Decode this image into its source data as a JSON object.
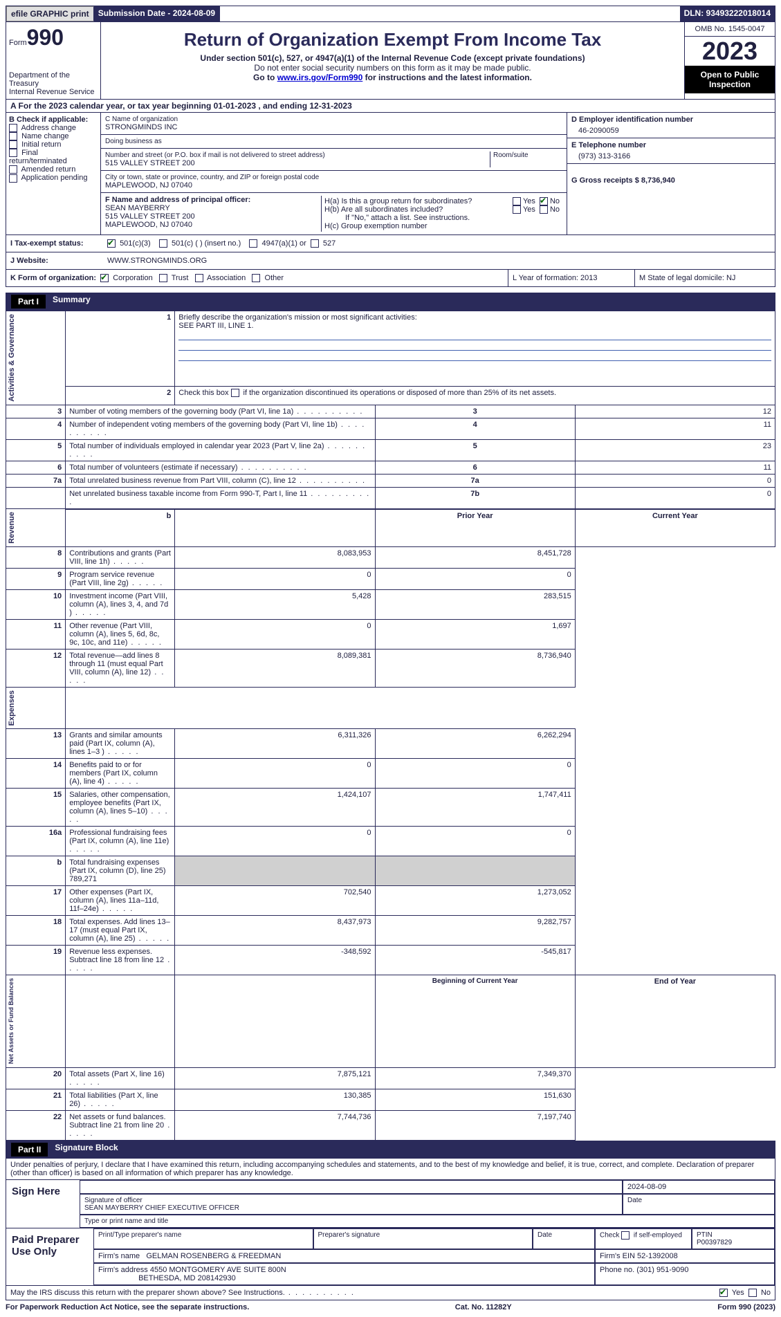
{
  "header": {
    "efile": "efile GRAPHIC print",
    "submission_label": "Submission Date - 2024-08-09",
    "dln": "DLN: 93493222018014"
  },
  "title": {
    "form_prefix": "Form",
    "form_no": "990",
    "dept": "Department of the Treasury",
    "irs": "Internal Revenue Service",
    "main": "Return of Organization Exempt From Income Tax",
    "sub1": "Under section 501(c), 527, or 4947(a)(1) of the Internal Revenue Code (except private foundations)",
    "sub2": "Do not enter social security numbers on this form as it may be made public.",
    "sub3_pre": "Go to ",
    "sub3_link": "www.irs.gov/Form990",
    "sub3_post": " for instructions and the latest information.",
    "omb": "OMB No. 1545-0047",
    "year": "2023",
    "inspection": "Open to Public Inspection"
  },
  "sectionA": "A For the 2023 calendar year, or tax year beginning 01-01-2023   , and ending 12-31-2023",
  "boxB": {
    "heading": "B Check if applicable:",
    "items": [
      "Address change",
      "Name change",
      "Initial return",
      "Final return/terminated",
      "Amended return",
      "Application pending"
    ]
  },
  "boxC": {
    "name_label": "C Name of organization",
    "name": "STRONGMINDS INC",
    "dba_label": "Doing business as",
    "street_label": "Number and street (or P.O. box if mail is not delivered to street address)",
    "room_label": "Room/suite",
    "street": "515 VALLEY STREET 200",
    "city_label": "City or town, state or province, country, and ZIP or foreign postal code",
    "city": "MAPLEWOOD, NJ  07040"
  },
  "boxD": {
    "label": "D Employer identification number",
    "val": "46-2090059"
  },
  "boxE": {
    "label": "E Telephone number",
    "val": "(973) 313-3166"
  },
  "boxG": {
    "label": "G Gross receipts $ 8,736,940"
  },
  "boxF": {
    "label": "F  Name and address of principal officer:",
    "l1": "SEAN MAYBERRY",
    "l2": "515 VALLEY STREET 200",
    "l3": "MAPLEWOOD, NJ  07040"
  },
  "boxH": {
    "a": "H(a)  Is this a group return for subordinates?",
    "b": "H(b)  Are all subordinates included?",
    "note": "If \"No,\" attach a list. See instructions.",
    "c": "H(c)  Group exemption number"
  },
  "boxI": {
    "label": "I   Tax-exempt status:",
    "o1": "501(c)(3)",
    "o2": "501(c) (  ) (insert no.)",
    "o3": "4947(a)(1) or",
    "o4": "527"
  },
  "boxJ": {
    "label": "J   Website:",
    "val": "WWW.STRONGMINDS.ORG"
  },
  "boxK": {
    "label": "K Form of organization:",
    "o1": "Corporation",
    "o2": "Trust",
    "o3": "Association",
    "o4": "Other"
  },
  "boxL": "L Year of formation: 2013",
  "boxM": "M State of legal domicile: NJ",
  "part1": {
    "label": "Part I",
    "title": "Summary"
  },
  "summary": {
    "s1": {
      "cat": "Activities & Governance",
      "l1": "Briefly describe the organization's mission or most significant activities:",
      "l1v": "SEE PART III, LINE 1.",
      "l2": "Check this box        if the organization discontinued its operations or disposed of more than 25% of its net assets.",
      "rows": [
        {
          "n": "3",
          "t": "Number of voting members of the governing body (Part VI, line 1a)",
          "v": "12"
        },
        {
          "n": "4",
          "t": "Number of independent voting members of the governing body (Part VI, line 1b)",
          "v": "11"
        },
        {
          "n": "5",
          "t": "Total number of individuals employed in calendar year 2023 (Part V, line 2a)",
          "v": "23"
        },
        {
          "n": "6",
          "t": "Total number of volunteers (estimate if necessary)",
          "v": "11"
        },
        {
          "n": "7a",
          "t": "Total unrelated business revenue from Part VIII, column (C), line 12",
          "v": "0"
        },
        {
          "n": "7b",
          "t": "Net unrelated business taxable income from Form 990-T, Part I, line 11",
          "v": "0",
          "hide_num": true
        }
      ]
    },
    "s2": {
      "cat": "Revenue",
      "h1": "Prior Year",
      "h2": "Current Year",
      "rows": [
        {
          "n": "8",
          "t": "Contributions and grants (Part VIII, line 1h)",
          "p": "8,083,953",
          "c": "8,451,728"
        },
        {
          "n": "9",
          "t": "Program service revenue (Part VIII, line 2g)",
          "p": "0",
          "c": "0"
        },
        {
          "n": "10",
          "t": "Investment income (Part VIII, column (A), lines 3, 4, and 7d )",
          "p": "5,428",
          "c": "283,515"
        },
        {
          "n": "11",
          "t": "Other revenue (Part VIII, column (A), lines 5, 6d, 8c, 9c, 10c, and 11e)",
          "p": "0",
          "c": "1,697"
        },
        {
          "n": "12",
          "t": "Total revenue—add lines 8 through 11 (must equal Part VIII, column (A), line 12)",
          "p": "8,089,381",
          "c": "8,736,940"
        }
      ]
    },
    "s3": {
      "cat": "Expenses",
      "rows": [
        {
          "n": "13",
          "t": "Grants and similar amounts paid (Part IX, column (A), lines 1–3 )",
          "p": "6,311,326",
          "c": "6,262,294"
        },
        {
          "n": "14",
          "t": "Benefits paid to or for members (Part IX, column (A), line 4)",
          "p": "0",
          "c": "0"
        },
        {
          "n": "15",
          "t": "Salaries, other compensation, employee benefits (Part IX, column (A), lines 5–10)",
          "p": "1,424,107",
          "c": "1,747,411"
        },
        {
          "n": "16a",
          "t": "Professional fundraising fees (Part IX, column (A), line 11e)",
          "p": "0",
          "c": "0"
        },
        {
          "n": "b",
          "t": "Total fundraising expenses (Part IX, column (D), line 25) 789,271",
          "shade": true
        },
        {
          "n": "17",
          "t": "Other expenses (Part IX, column (A), lines 11a–11d, 11f–24e)",
          "p": "702,540",
          "c": "1,273,052"
        },
        {
          "n": "18",
          "t": "Total expenses. Add lines 13–17 (must equal Part IX, column (A), line 25)",
          "p": "8,437,973",
          "c": "9,282,757"
        },
        {
          "n": "19",
          "t": "Revenue less expenses. Subtract line 18 from line 12",
          "p": "-348,592",
          "c": "-545,817"
        }
      ]
    },
    "s4": {
      "cat": "Net Assets or Fund Balances",
      "h1": "Beginning of Current Year",
      "h2": "End of Year",
      "rows": [
        {
          "n": "20",
          "t": "Total assets (Part X, line 16)",
          "p": "7,875,121",
          "c": "7,349,370"
        },
        {
          "n": "21",
          "t": "Total liabilities (Part X, line 26)",
          "p": "130,385",
          "c": "151,630"
        },
        {
          "n": "22",
          "t": "Net assets or fund balances. Subtract line 21 from line 20",
          "p": "7,744,736",
          "c": "7,197,740"
        }
      ]
    }
  },
  "part2": {
    "label": "Part II",
    "title": "Signature Block",
    "decl": "Under penalties of perjury, I declare that I have examined this return, including accompanying schedules and statements, and to the best of my knowledge and belief, it is true, correct, and complete. Declaration of preparer (other than officer) is based on all information of which preparer has any knowledge."
  },
  "sign": {
    "here": "Sign Here",
    "date": "2024-08-09",
    "sig_label": "Signature of officer",
    "date_label": "Date",
    "officer": "SEAN MAYBERRY CHIEF EXECUTIVE OFFICER",
    "type_label": "Type or print name and title"
  },
  "prep": {
    "label": "Paid Preparer Use Only",
    "h1": "Print/Type preparer's name",
    "h2": "Preparer's signature",
    "h3": "Date",
    "h4": "Check        if self-employed",
    "h5": "PTIN",
    "ptin": "P00397829",
    "firm_l": "Firm's name",
    "firm": "GELMAN ROSENBERG & FREEDMAN",
    "ein_l": "Firm's EIN",
    "ein": "52-1392008",
    "addr_l": "Firm's address",
    "addr1": "4550 MONTGOMERY AVE SUITE 800N",
    "addr2": "BETHESDA, MD  208142930",
    "phone_l": "Phone no.",
    "phone": "(301) 951-9090"
  },
  "discuss": "May the IRS discuss this return with the preparer shown above? See Instructions.",
  "footer": {
    "l": "For Paperwork Reduction Act Notice, see the separate instructions.",
    "m": "Cat. No. 11282Y",
    "r": "Form 990 (2023)"
  },
  "yn": {
    "y": "Yes",
    "n": "No"
  }
}
